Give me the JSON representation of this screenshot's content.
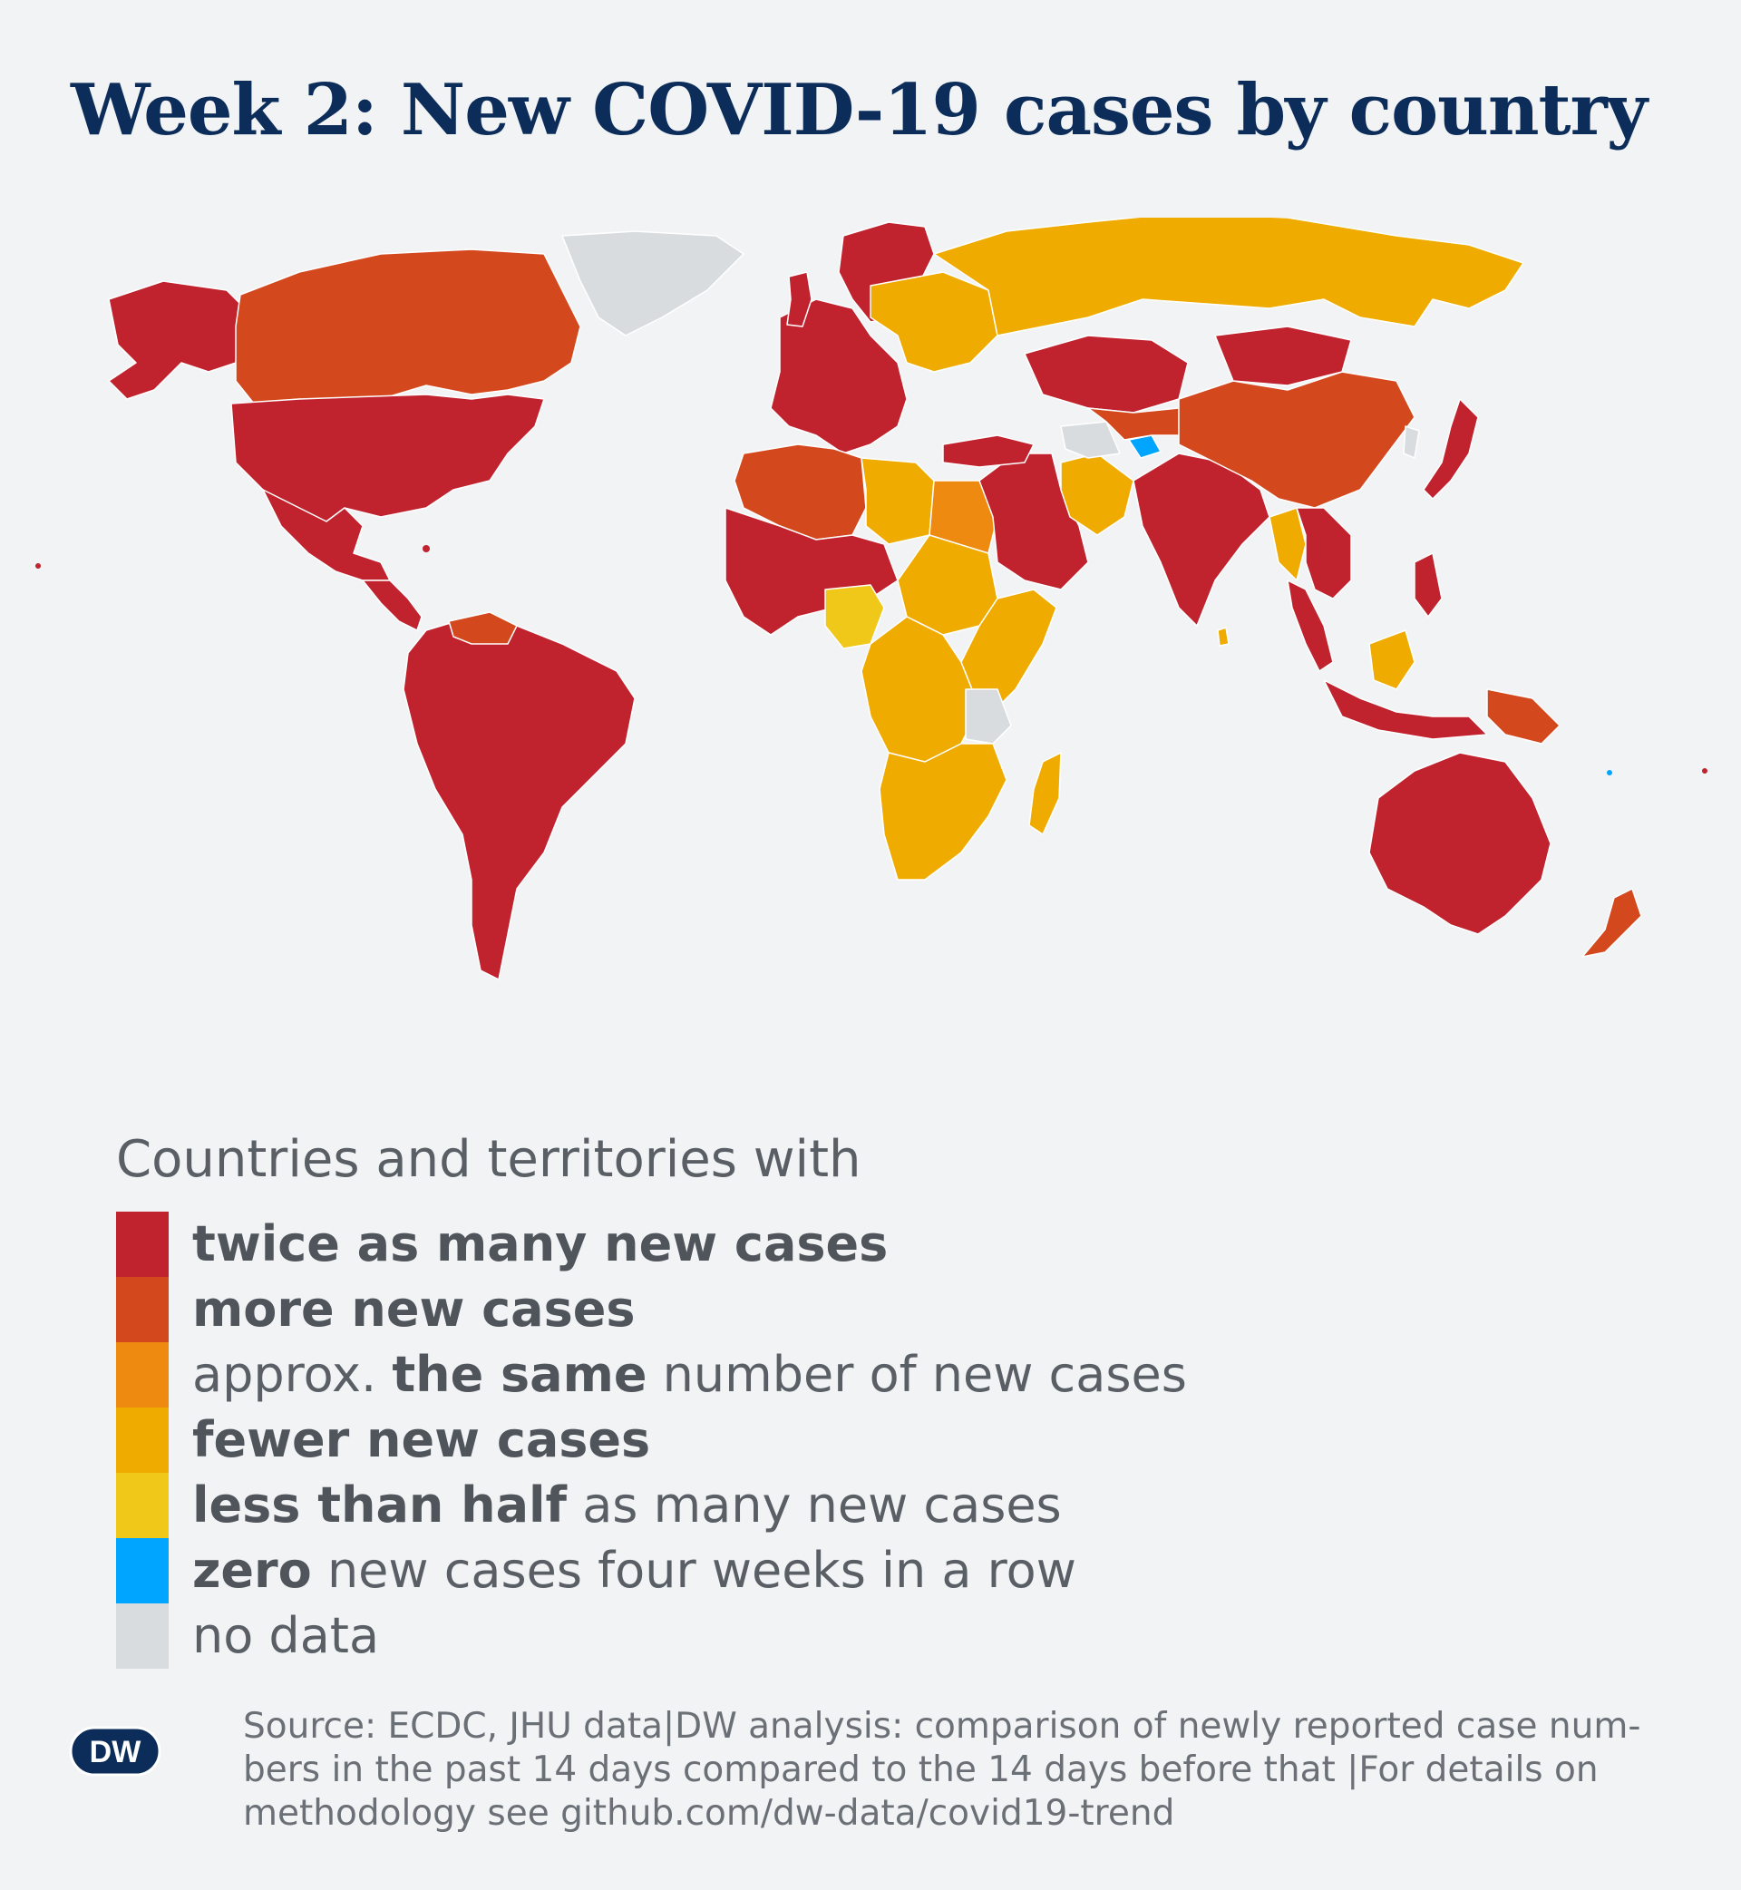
{
  "title": "Week 2: New COVID-19 cases by country",
  "legend": {
    "heading": "Countries and territories with",
    "items": [
      {
        "key": "twice",
        "color": "#c0222e",
        "pre": "",
        "bold": "twice as many new cases",
        "post": ""
      },
      {
        "key": "more",
        "color": "#d4481e",
        "pre": "",
        "bold": "more new cases",
        "post": ""
      },
      {
        "key": "same",
        "color": "#ee8a0f",
        "pre": "approx. ",
        "bold": "the same",
        "post": " number of new cases"
      },
      {
        "key": "fewer",
        "color": "#f0ab00",
        "pre": "",
        "bold": "fewer new cases",
        "post": ""
      },
      {
        "key": "half",
        "color": "#f0c81a",
        "pre": "",
        "bold": "less than half",
        "post": " as many new cases"
      },
      {
        "key": "zero",
        "color": "#00a5ff",
        "pre": "",
        "bold": "zero",
        "post": " new cases four weeks in a row"
      },
      {
        "key": "nodata",
        "color": "#d9dcdf",
        "pre": "no data",
        "bold": "",
        "post": ""
      }
    ]
  },
  "source": {
    "line1": "Source: ECDC, JHU data|DW analysis: comparison of newly reported case num-",
    "line2": "bers in the past 14 days compared to the 14 days before that |For details on",
    "line3": "methodology see github.com/dw-data/covid19-trend"
  },
  "logo": {
    "text": "DW"
  },
  "map_regions": {
    "north_america_usa": "twice",
    "canada": "more",
    "alaska": "twice",
    "greenland": "nodata",
    "mexico": "twice",
    "central_america": "twice",
    "south_america": "twice",
    "venezuela": "more",
    "europe_west": "twice",
    "europe_east": "fewer",
    "scandinavia": "twice",
    "russia": "fewer",
    "north_africa_west": "more",
    "libya": "fewer",
    "egypt": "same",
    "west_africa": "twice",
    "nigeria": "half",
    "central_africa": "fewer",
    "east_africa": "fewer",
    "tanzania": "nodata",
    "southern_africa": "fewer",
    "madagascar": "fewer",
    "middle_east": "twice",
    "iran": "fewer",
    "turkmenistan": "nodata",
    "tajikistan": "zero",
    "kazakhstan": "twice",
    "india": "twice",
    "china": "more",
    "mongolia": "twice",
    "southeast_asia": "twice",
    "myanmar": "fewer",
    "japan": "twice",
    "indonesia": "twice",
    "borneo": "fewer",
    "papua": "more",
    "australia": "twice",
    "new_zealand": "more"
  }
}
